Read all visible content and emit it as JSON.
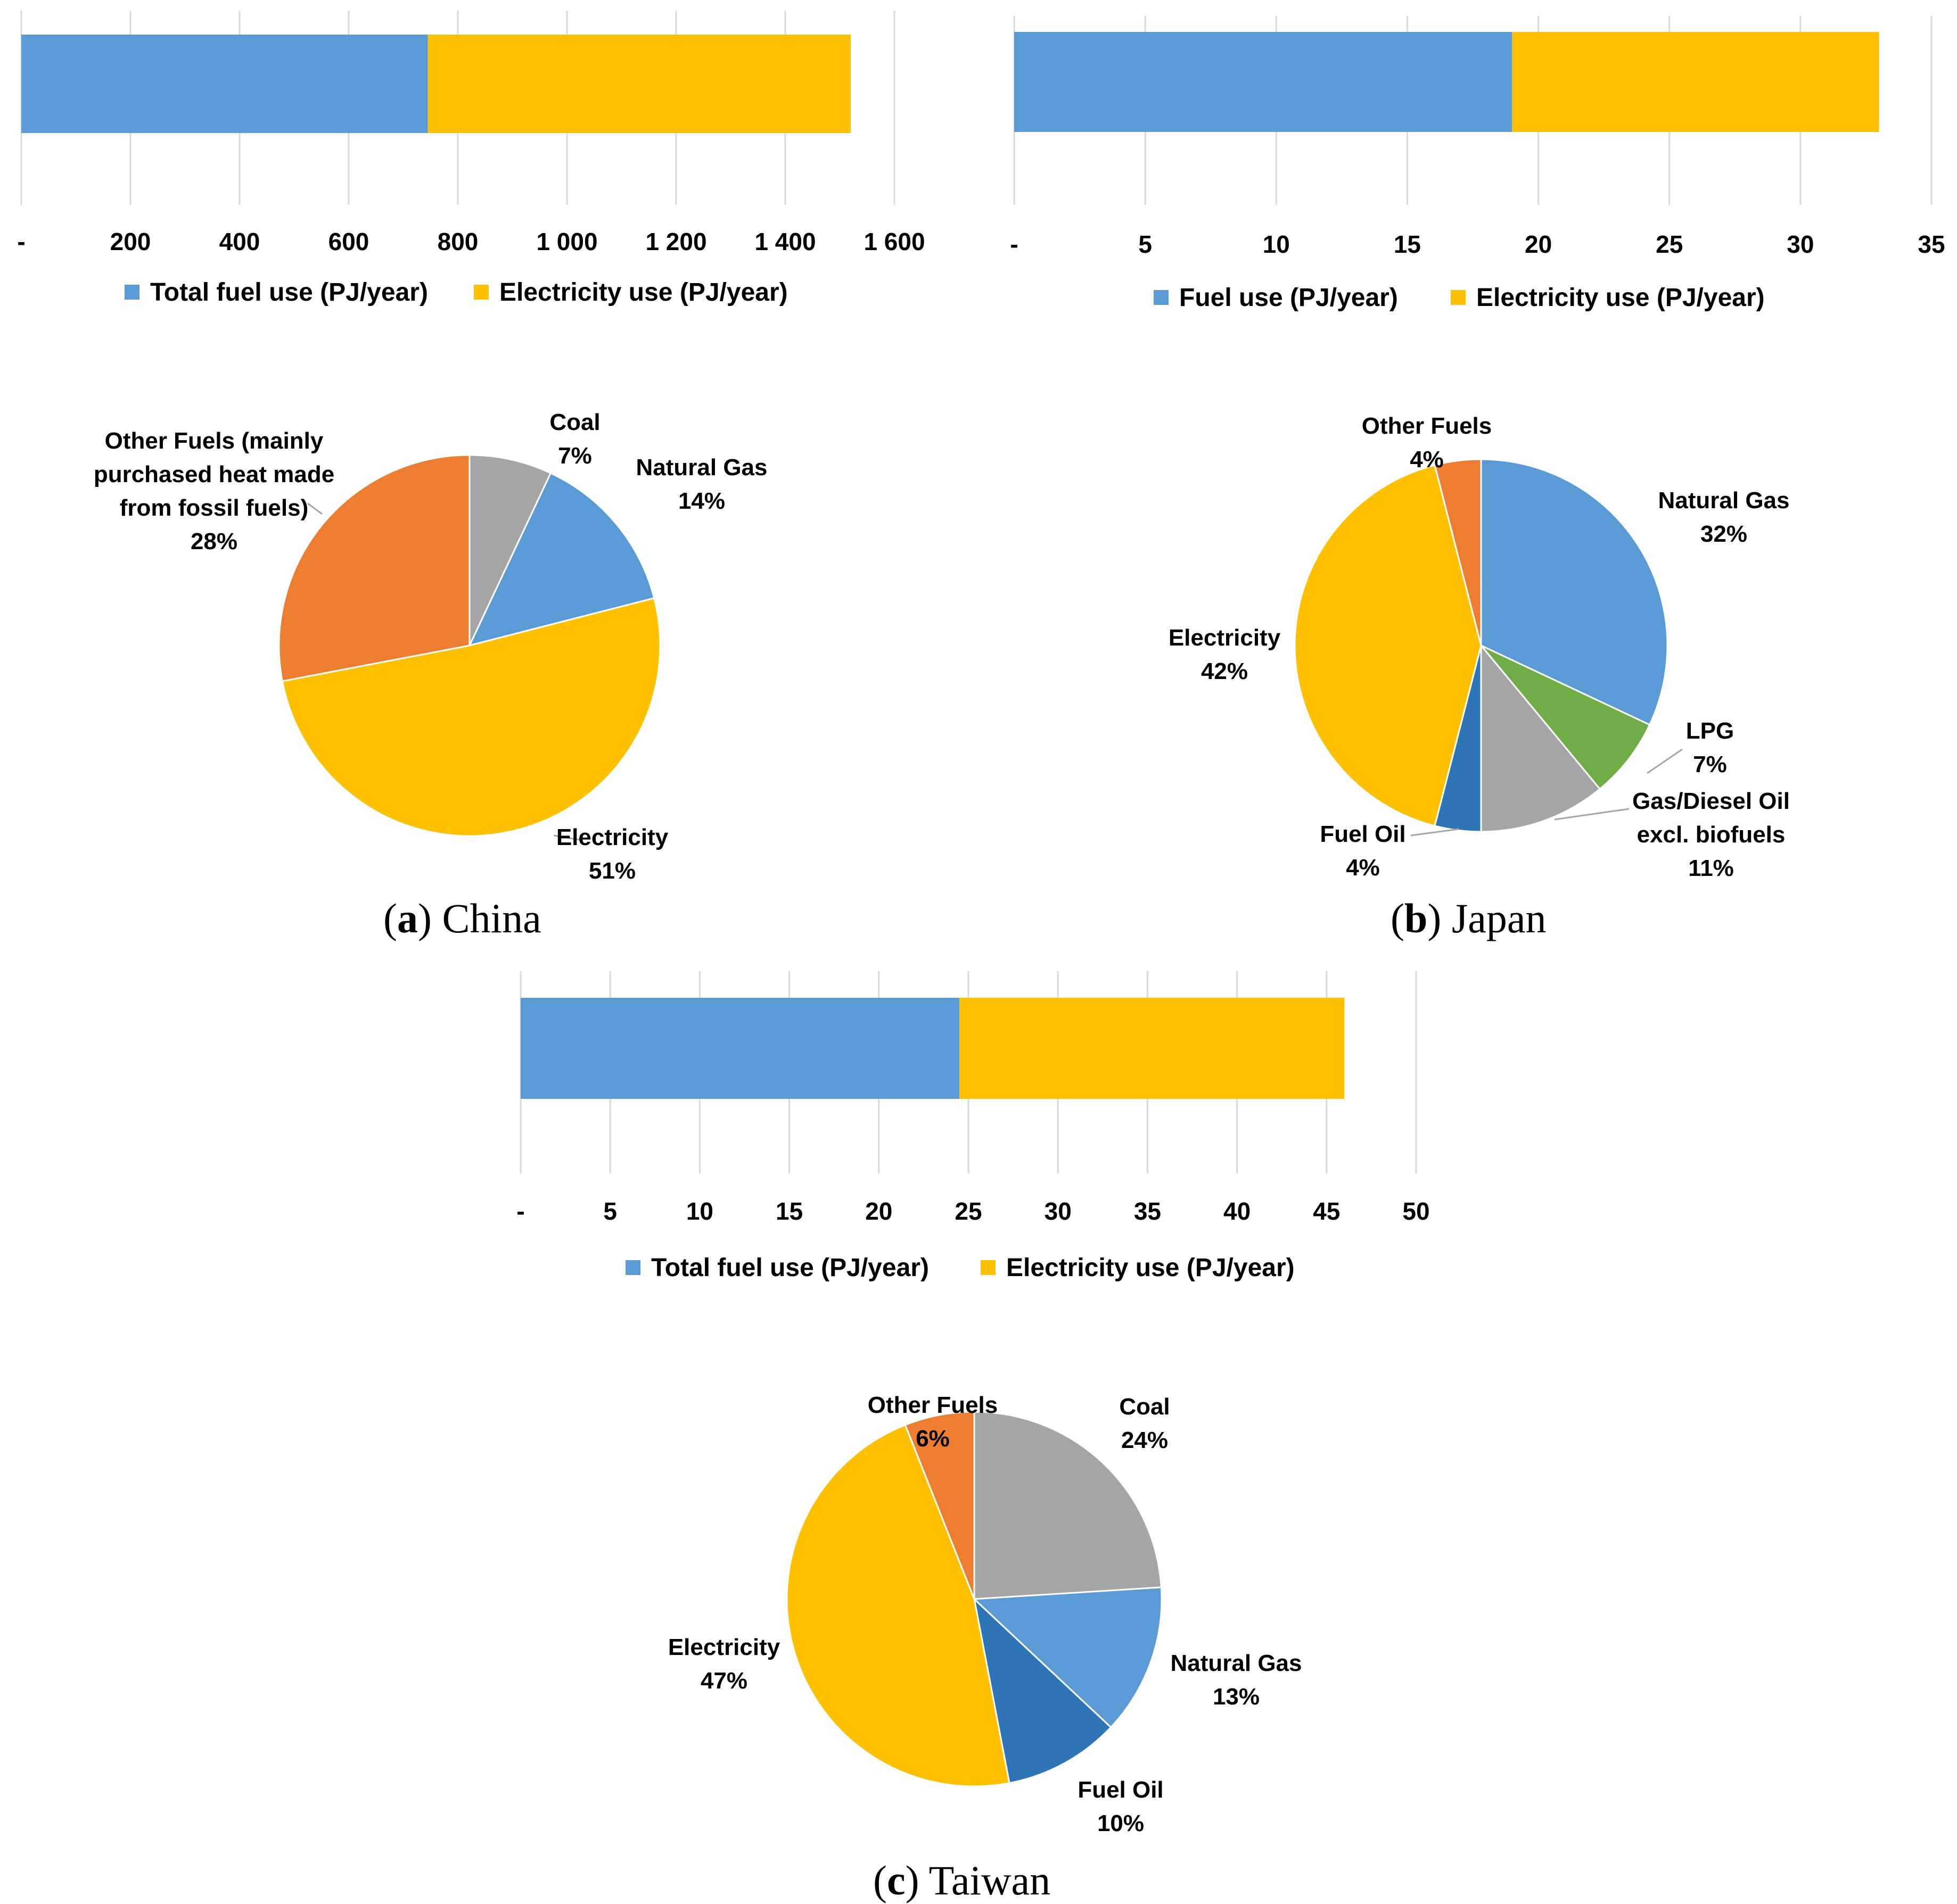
{
  "chart_data": [
    {
      "type": "bar",
      "panel": "a",
      "orientation": "horizontal-stacked",
      "categories": [
        ""
      ],
      "series": [
        {
          "name": "Total fuel use (PJ/year)",
          "values": [
            745
          ],
          "color": "#5b9bd5"
        },
        {
          "name": "Electricity use (PJ/year)",
          "values": [
            775
          ],
          "color": "#ffc000"
        }
      ],
      "xlim": [
        0,
        1600
      ],
      "tick_values": [
        0,
        200,
        400,
        600,
        800,
        1000,
        1200,
        1400,
        1600
      ],
      "tick_labels": [
        "-",
        "200",
        "400",
        "600",
        "800",
        "1 000",
        "1 200",
        "1 400",
        "1 600"
      ],
      "legend_position": "bottom"
    },
    {
      "type": "bar",
      "panel": "b",
      "orientation": "horizontal-stacked",
      "categories": [
        ""
      ],
      "series": [
        {
          "name": "Fuel use (PJ/year)",
          "values": [
            19
          ],
          "color": "#5b9bd5"
        },
        {
          "name": "Electricity use (PJ/year)",
          "values": [
            14
          ],
          "color": "#ffc000"
        }
      ],
      "xlim": [
        0,
        35
      ],
      "tick_values": [
        0,
        5,
        10,
        15,
        20,
        25,
        30,
        35
      ],
      "tick_labels": [
        "-",
        "5",
        "10",
        "15",
        "20",
        "25",
        "30",
        "35"
      ],
      "legend_position": "bottom"
    },
    {
      "type": "bar",
      "panel": "c",
      "orientation": "horizontal-stacked",
      "categories": [
        ""
      ],
      "series": [
        {
          "name": "Total fuel use (PJ/year)",
          "values": [
            24.5
          ],
          "color": "#5b9bd5"
        },
        {
          "name": "Electricity use (PJ/year)",
          "values": [
            21.5
          ],
          "color": "#ffc000"
        }
      ],
      "xlim": [
        0,
        50
      ],
      "tick_values": [
        0,
        5,
        10,
        15,
        20,
        25,
        30,
        35,
        40,
        45,
        50
      ],
      "tick_labels": [
        "-",
        "5",
        "10",
        "15",
        "20",
        "25",
        "30",
        "35",
        "40",
        "45",
        "50"
      ],
      "legend_position": "bottom"
    },
    {
      "type": "pie",
      "panel": "a",
      "slices": [
        {
          "label": [
            "Coal",
            "7%"
          ],
          "value": 7,
          "color": "#a5a5a5"
        },
        {
          "label": [
            "Natural Gas",
            "14%"
          ],
          "value": 14,
          "color": "#5b9bd5"
        },
        {
          "label": [
            "Electricity",
            "51%"
          ],
          "value": 51,
          "color": "#ffc000"
        },
        {
          "label": [
            "Other Fuels (mainly",
            "purchased heat made",
            "from fossil fuels)",
            "28%"
          ],
          "value": 28,
          "color": "#ed7d31"
        }
      ]
    },
    {
      "type": "pie",
      "panel": "b",
      "slices": [
        {
          "label": [
            "Natural Gas",
            "32%"
          ],
          "value": 32,
          "color": "#5b9bd5"
        },
        {
          "label": [
            "LPG",
            "7%"
          ],
          "value": 7,
          "color": "#70ad47"
        },
        {
          "label": [
            "Gas/Diesel Oil",
            "excl. biofuels",
            "11%"
          ],
          "value": 11,
          "color": "#a5a5a5"
        },
        {
          "label": [
            "Fuel Oil",
            "4%"
          ],
          "value": 4,
          "color": "#2e75b6"
        },
        {
          "label": [
            "Electricity",
            "42%"
          ],
          "value": 42,
          "color": "#ffc000"
        },
        {
          "label": [
            "Other Fuels",
            "4%"
          ],
          "value": 4,
          "color": "#ed7d31"
        }
      ]
    },
    {
      "type": "pie",
      "panel": "c",
      "slices": [
        {
          "label": [
            "Coal",
            "24%"
          ],
          "value": 24,
          "color": "#a5a5a5"
        },
        {
          "label": [
            "Natural Gas",
            "13%"
          ],
          "value": 13,
          "color": "#5b9bd5"
        },
        {
          "label": [
            "Fuel Oil",
            "10%"
          ],
          "value": 10,
          "color": "#2e75b6"
        },
        {
          "label": [
            "Electricity",
            "47%"
          ],
          "value": 47,
          "color": "#ffc000"
        },
        {
          "label": [
            "Other Fuels",
            "6%"
          ],
          "value": 6,
          "color": "#ed7d31"
        }
      ]
    }
  ],
  "captions": {
    "a": {
      "letter": "a",
      "text": " China"
    },
    "b": {
      "letter": "b",
      "text": " Japan"
    },
    "c": {
      "letter": "c",
      "text": " Taiwan"
    }
  }
}
